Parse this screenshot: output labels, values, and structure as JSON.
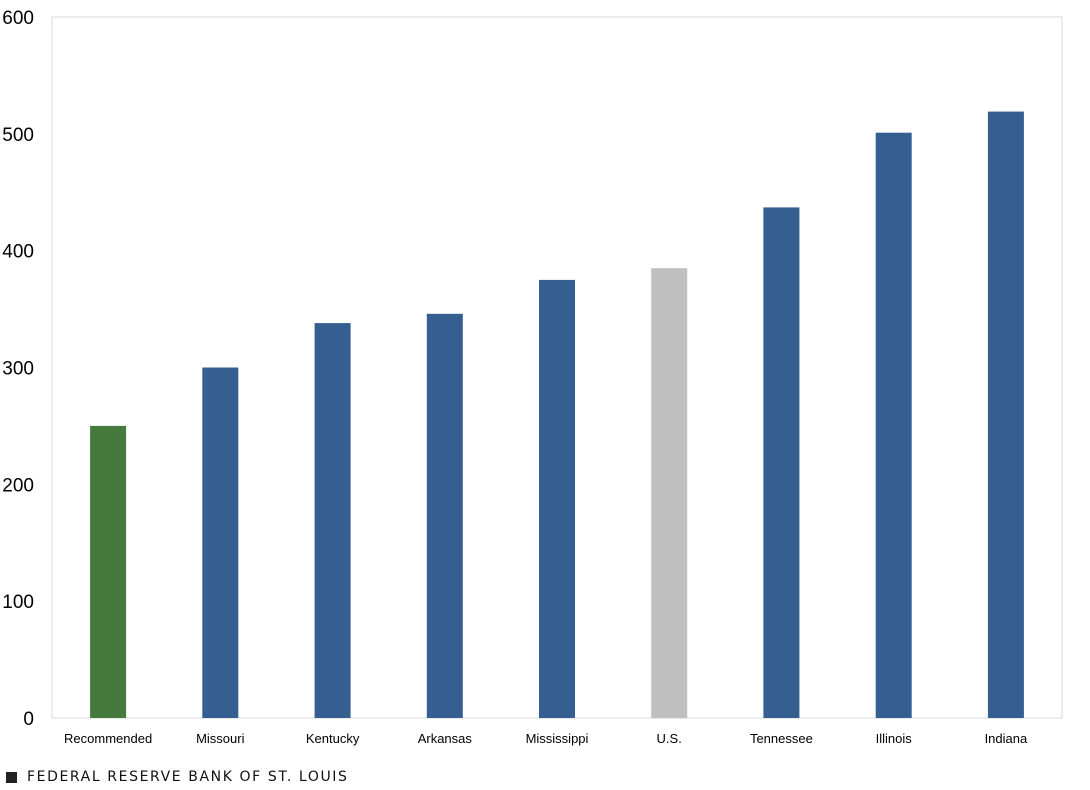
{
  "chart_data": {
    "type": "bar",
    "categories": [
      "Recommended",
      "Missouri",
      "Kentucky",
      "Arkansas",
      "Mississippi",
      "U.S.",
      "Tennessee",
      "Illinois",
      "Indiana"
    ],
    "values": [
      250,
      300,
      338,
      346,
      375,
      385,
      437,
      501,
      519
    ],
    "bar_colors": [
      "#467A3C",
      "#355F91",
      "#355F91",
      "#355F91",
      "#355F91",
      "#BFBFBF",
      "#355F91",
      "#355F91",
      "#355F91"
    ],
    "ylim": [
      0,
      600
    ],
    "yticks": [
      0,
      100,
      200,
      300,
      400,
      500,
      600
    ],
    "grid": false,
    "title": "",
    "xlabel": "",
    "ylabel": ""
  },
  "footer": {
    "source": "FEDERAL RESERVE BANK OF ST. LOUIS"
  }
}
